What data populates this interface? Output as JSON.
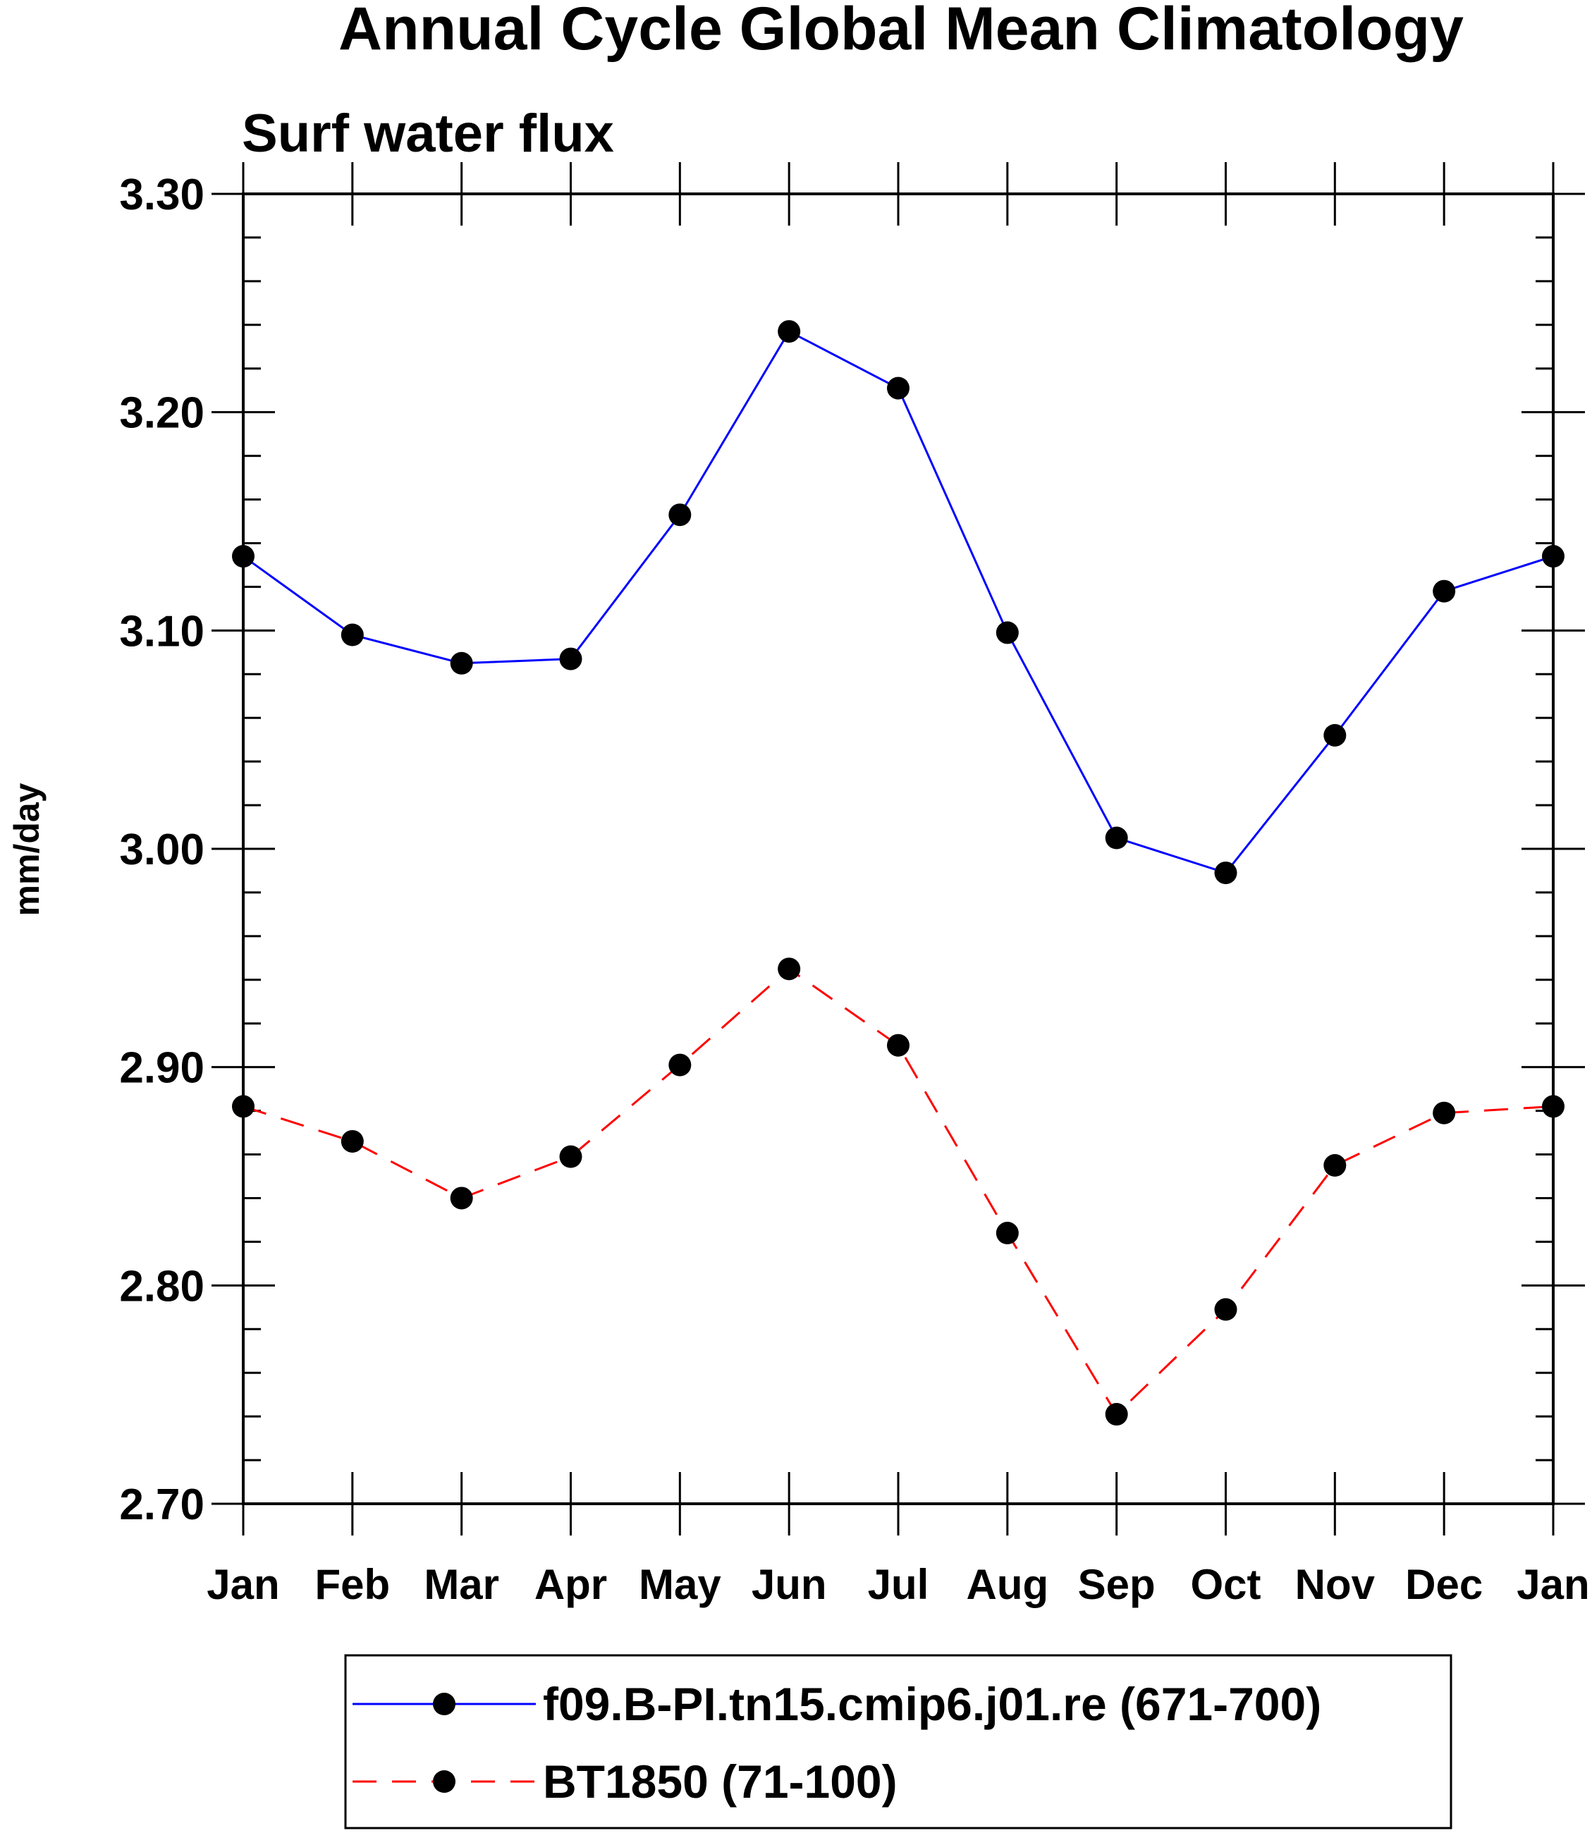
{
  "chart_data": {
    "type": "line",
    "title": "Annual Cycle Global Mean Climatology",
    "subtitle": "Surf water flux",
    "xlabel": "",
    "ylabel": "mm/day",
    "categories": [
      "Jan",
      "Feb",
      "Mar",
      "Apr",
      "May",
      "Jun",
      "Jul",
      "Aug",
      "Sep",
      "Oct",
      "Nov",
      "Dec",
      "Jan"
    ],
    "ylim": [
      2.7,
      3.3
    ],
    "yticks": [
      "2.70",
      "2.80",
      "2.90",
      "3.00",
      "3.10",
      "3.20",
      "3.30"
    ],
    "legend_position": "bottom",
    "series": [
      {
        "name": "f09.B-PI.tn15.cmip6.j01.re (671-700)",
        "color": "#0000ff",
        "line_style": "solid",
        "marker": "filled-circle",
        "values": [
          3.134,
          3.098,
          3.085,
          3.087,
          3.153,
          3.237,
          3.211,
          3.099,
          3.005,
          2.989,
          3.052,
          3.118,
          3.134
        ]
      },
      {
        "name": "BT1850 (71-100)",
        "color": "#ff0000",
        "line_style": "dashed",
        "marker": "filled-circle",
        "values": [
          2.882,
          2.866,
          2.84,
          2.859,
          2.901,
          2.945,
          2.91,
          2.824,
          2.741,
          2.789,
          2.855,
          2.879,
          2.882
        ]
      }
    ]
  }
}
